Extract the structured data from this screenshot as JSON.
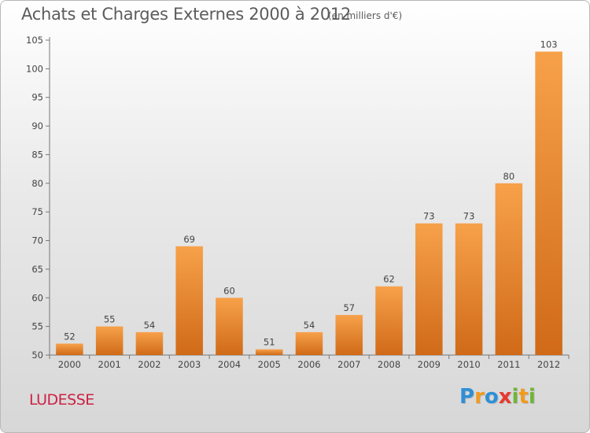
{
  "title": "Achats et Charges Externes 2000 à 2012",
  "subtitle": "(en milliers d'€)",
  "place": "LUDESSE",
  "logo": {
    "letters": [
      "P",
      "r",
      "o",
      "x",
      "i",
      "t",
      "i"
    ],
    "colors": [
      "#2e8fd6",
      "#f29a1e",
      "#2e8fd6",
      "#e63a2e",
      "#6fb53a",
      "#f29a1e",
      "#6fb53a"
    ]
  },
  "colors": {
    "bar_top": "#f7a14a",
    "bar_bottom": "#d06a18",
    "title": "#5c5c5c",
    "place": "#cc2244"
  },
  "chart_data": {
    "type": "bar",
    "categories": [
      "2000",
      "2001",
      "2002",
      "2003",
      "2004",
      "2005",
      "2006",
      "2007",
      "2008",
      "2009",
      "2010",
      "2011",
      "2012"
    ],
    "values": [
      52,
      55,
      54,
      69,
      60,
      51,
      54,
      57,
      62,
      73,
      73,
      80,
      103
    ],
    "ylim": [
      50,
      105
    ],
    "yticks": [
      50,
      55,
      60,
      65,
      70,
      75,
      80,
      85,
      90,
      95,
      100,
      105
    ],
    "grid": false,
    "data_labels": true
  }
}
